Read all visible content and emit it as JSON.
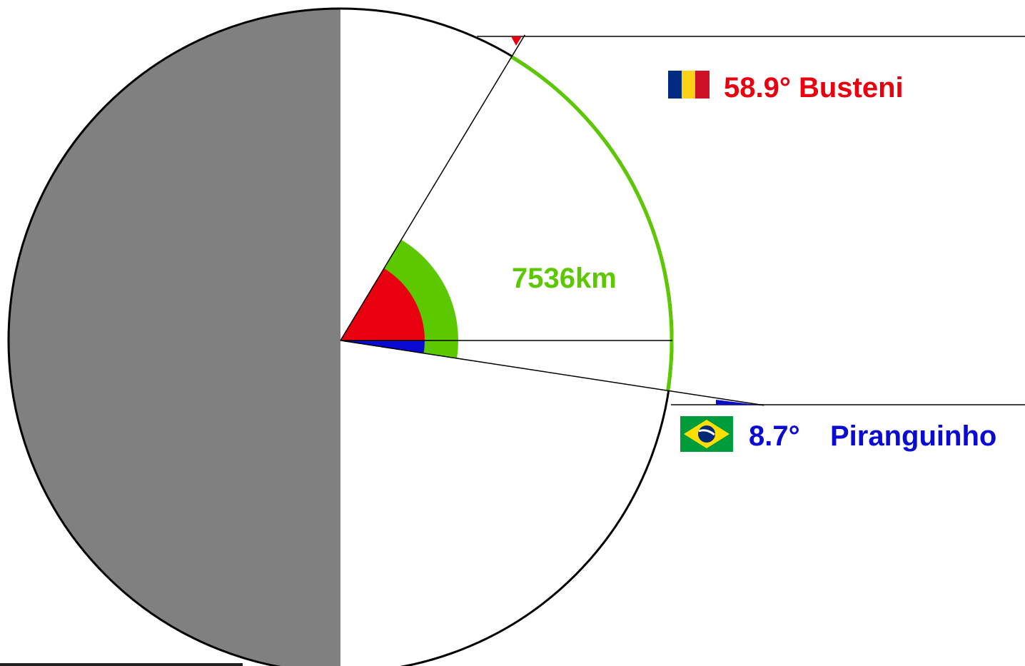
{
  "colors": {
    "background": "#ffffff",
    "shadow": "#808080",
    "outline": "#000000",
    "arc": "#5cc800",
    "busteni": "#e8000f",
    "piranguinho": "#0a0ad2",
    "romania_flag": [
      "#002b7f",
      "#fcd116",
      "#ce1126"
    ],
    "brazil_flag": [
      "#009c3b",
      "#ffdf00",
      "#002776"
    ]
  },
  "busteni": {
    "angle_deg": 58.9,
    "label": "58.9° Busteni",
    "flag": "romania-flag-icon"
  },
  "piranguinho": {
    "angle_deg": -8.7,
    "label_value": "8.7°",
    "label_name": "Piranguinho",
    "flag": "brazil-flag-icon"
  },
  "distance": {
    "label": "7536km"
  }
}
